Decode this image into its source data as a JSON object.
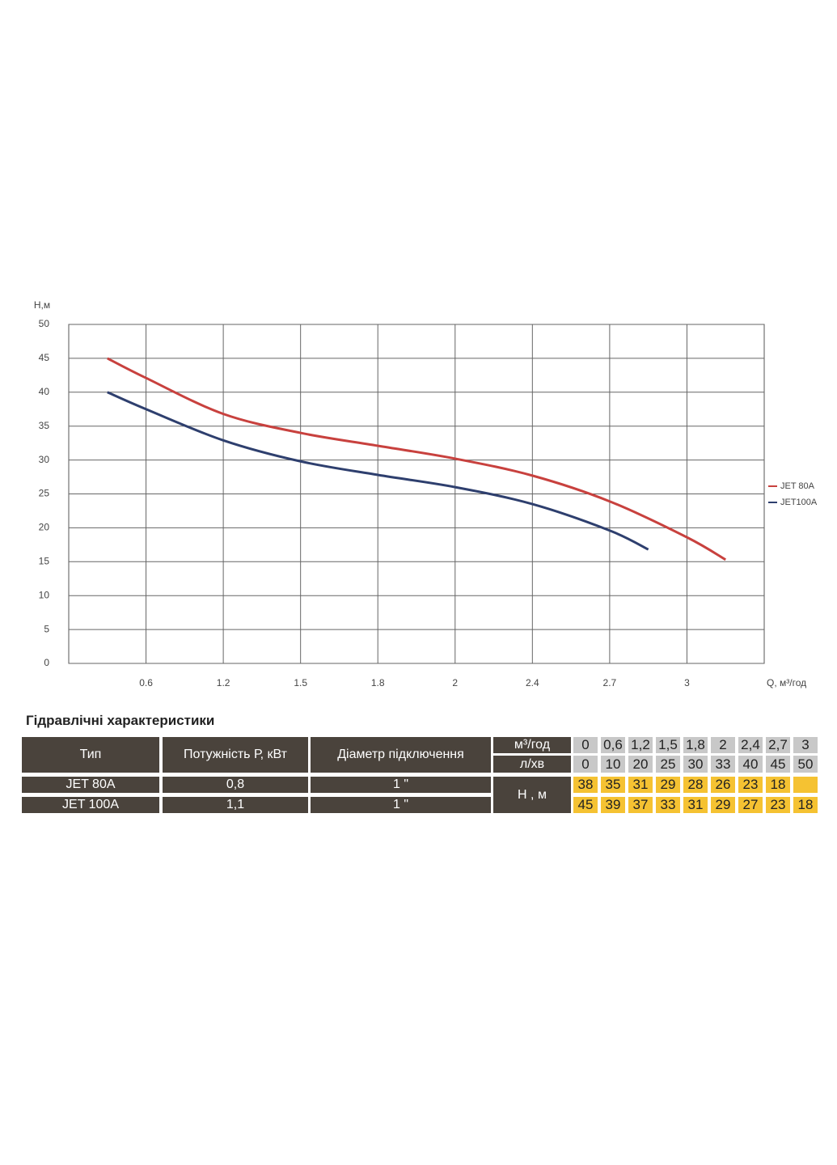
{
  "chart_data": {
    "type": "line",
    "y_label": "Н,м",
    "x_label": "Q, м³/год",
    "xlim": [
      0,
      9
    ],
    "xticks": [
      {
        "value": 1,
        "label": "0.6"
      },
      {
        "value": 2,
        "label": "1.2"
      },
      {
        "value": 3,
        "label": "1.5"
      },
      {
        "value": 4,
        "label": "1.8"
      },
      {
        "value": 5,
        "label": "2"
      },
      {
        "value": 6,
        "label": "2.4"
      },
      {
        "value": 7,
        "label": "2.7"
      },
      {
        "value": 8,
        "label": "3"
      }
    ],
    "ylim": [
      0,
      50
    ],
    "yticks": [
      0,
      5,
      10,
      15,
      20,
      25,
      30,
      35,
      40,
      45,
      50
    ],
    "grid": true,
    "legend": "right",
    "series": [
      {
        "name": "JET 80A",
        "color": "#c8413e",
        "x": [
          0.5,
          1,
          2,
          3,
          4,
          5,
          6,
          7,
          8,
          8.5
        ],
        "values": [
          45,
          42.1,
          36.8,
          34,
          32.1,
          30.2,
          27.7,
          23.9,
          18.6,
          15.3
        ]
      },
      {
        "name": "JET100A",
        "color": "#2e3f6e",
        "x": [
          0.5,
          1,
          2,
          3,
          4,
          5,
          6,
          7,
          7.5
        ],
        "values": [
          40,
          37.5,
          32.9,
          29.8,
          27.8,
          26,
          23.5,
          19.6,
          16.8
        ]
      }
    ]
  },
  "table": {
    "title": "Гідравлічні характеристики",
    "headers": [
      "Тип",
      "Потужність  Р, кВт",
      "Діаметр підключення"
    ],
    "rows": [
      [
        "JET 80A",
        "0,8",
        "1 \""
      ],
      [
        "JET 100A",
        "1,1",
        "1 \""
      ]
    ],
    "flow_m3h_label": "м³/год",
    "flow_m3h": [
      "0",
      "0,6",
      "1,2",
      "1,5",
      "1,8",
      "2",
      "2,4",
      "2,7",
      "3"
    ],
    "flow_lpm_label": "л/хв",
    "flow_lpm": [
      0,
      10,
      20,
      25,
      30,
      33,
      40,
      45,
      50
    ],
    "head_label": "Н , м",
    "heads": [
      [
        38,
        35,
        31,
        29,
        28,
        26,
        23,
        18,
        null
      ],
      [
        45,
        39,
        37,
        33,
        31,
        29,
        27,
        23,
        18
      ]
    ]
  }
}
